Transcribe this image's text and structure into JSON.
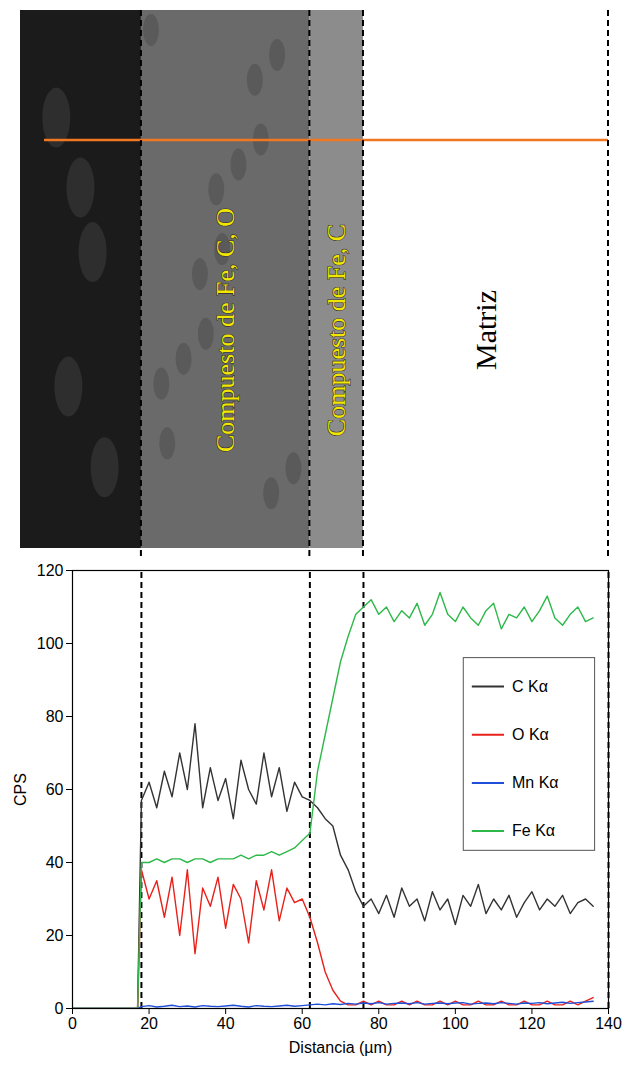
{
  "chart_data": {
    "type": "line",
    "x_label": "Distancia (µm)",
    "y_label": "CPS",
    "x": [
      0,
      17,
      18,
      20,
      22,
      24,
      26,
      28,
      30,
      32,
      34,
      36,
      38,
      40,
      42,
      44,
      46,
      48,
      50,
      52,
      54,
      56,
      58,
      60,
      62,
      64,
      66,
      68,
      70,
      72,
      74,
      76,
      78,
      80,
      82,
      84,
      86,
      88,
      90,
      92,
      94,
      96,
      98,
      100,
      102,
      104,
      106,
      108,
      110,
      112,
      114,
      116,
      118,
      120,
      122,
      124,
      126,
      128,
      130,
      132,
      134,
      136
    ],
    "series": [
      {
        "name": "C Kα",
        "color": "#333333",
        "values": [
          0,
          0,
          57,
          62,
          55,
          65,
          58,
          70,
          60,
          78,
          55,
          66,
          57,
          63,
          52,
          68,
          60,
          56,
          70,
          58,
          66,
          54,
          62,
          58,
          57,
          55,
          52,
          50,
          42,
          38,
          32,
          28,
          30,
          26,
          31,
          25,
          33,
          28,
          30,
          24,
          32,
          27,
          30,
          23,
          31,
          28,
          34,
          26,
          30,
          27,
          31,
          25,
          29,
          32,
          27,
          30,
          28,
          31,
          26,
          29,
          30,
          28
        ]
      },
      {
        "name": "O Kα",
        "color": "#e8211b",
        "values": [
          0,
          0,
          38,
          30,
          35,
          25,
          36,
          20,
          38,
          15,
          33,
          28,
          36,
          22,
          34,
          30,
          18,
          35,
          27,
          38,
          24,
          33,
          29,
          30,
          25,
          18,
          10,
          5,
          2,
          1,
          1,
          2,
          1,
          2,
          1,
          1,
          2,
          1,
          2,
          1,
          1,
          2,
          1,
          2,
          1,
          1,
          2,
          1,
          1,
          2,
          1,
          1,
          2,
          1,
          1,
          2,
          1,
          1,
          2,
          1,
          2,
          3
        ]
      },
      {
        "name": "Mn Kα",
        "color": "#1f4fd8",
        "values": [
          0,
          0,
          0.5,
          0.8,
          0.4,
          0.6,
          0.9,
          0.5,
          0.7,
          0.4,
          0.8,
          0.6,
          0.5,
          0.7,
          0.9,
          0.6,
          0.4,
          0.8,
          0.6,
          0.5,
          0.7,
          0.9,
          0.6,
          0.8,
          1,
          1.2,
          1,
          1.3,
          1.1,
          1.4,
          1.2,
          1.5,
          1.3,
          1.6,
          1.2,
          1.4,
          1.5,
          1.3,
          1.6,
          1.2,
          1.4,
          1.5,
          1.3,
          1.5,
          1.6,
          1.2,
          1.4,
          1.5,
          1.3,
          1.6,
          1.4,
          1.2,
          1.5,
          1.4,
          1.6,
          1.3,
          1.5,
          1.7,
          1.4,
          1.6,
          1.8,
          2
        ]
      },
      {
        "name": "Fe Kα",
        "color": "#2db84a",
        "values": [
          0,
          0,
          40,
          40,
          41,
          40,
          41,
          41,
          40,
          41,
          41,
          40,
          41,
          41,
          41,
          42,
          41,
          42,
          42,
          43,
          42,
          43,
          44,
          46,
          48,
          65,
          75,
          85,
          95,
          102,
          108,
          110,
          112,
          108,
          110,
          106,
          109,
          107,
          111,
          105,
          108,
          114,
          108,
          106,
          110,
          107,
          105,
          109,
          111,
          104,
          108,
          107,
          110,
          106,
          109,
          113,
          107,
          105,
          108,
          110,
          106,
          107
        ]
      }
    ],
    "xlim": [
      0,
      140
    ],
    "xticks": [
      0,
      20,
      40,
      60,
      80,
      100,
      120,
      140
    ],
    "ylim": [
      0,
      120
    ],
    "yticks": [
      0,
      20,
      40,
      60,
      80,
      100,
      120
    ],
    "grid": false,
    "legend": "right",
    "boundaries": [
      18,
      62,
      76,
      140
    ],
    "annotations": [
      {
        "text": "Compuesto de Fe, C, O",
        "x_from": 18,
        "x_to": 62,
        "color": "#f2e600"
      },
      {
        "text": "Compuesto de Fe, C",
        "x_from": 62,
        "x_to": 76,
        "color": "#f2e600"
      },
      {
        "text": "Matriz",
        "x_from": 76,
        "x_to": 140,
        "color": "#000000"
      }
    ]
  }
}
